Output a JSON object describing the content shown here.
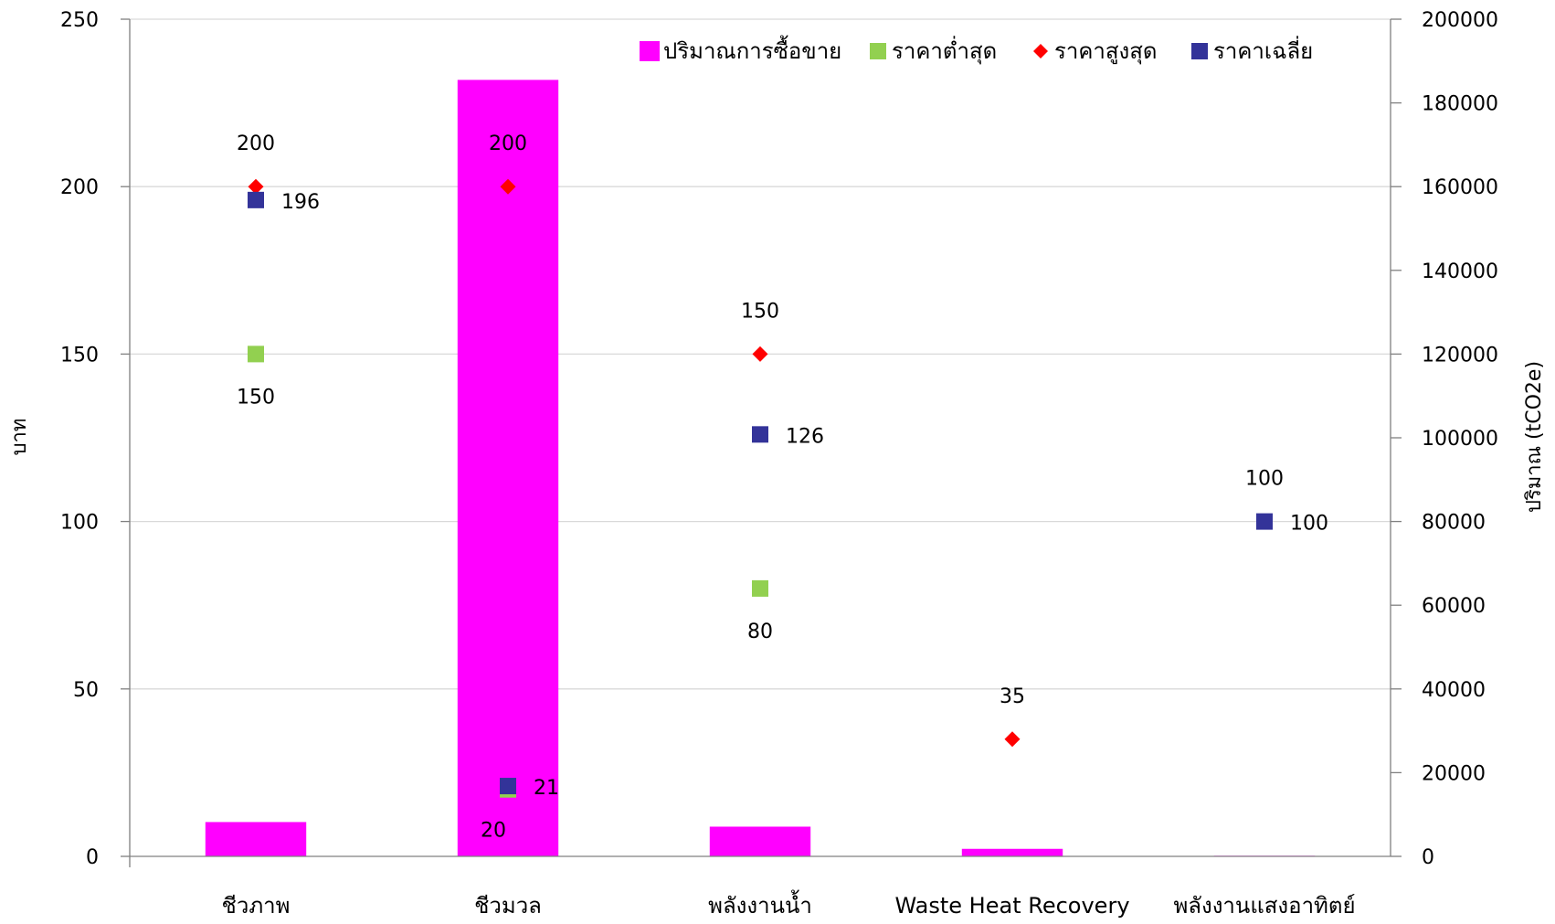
{
  "chart_data": {
    "type": "bar",
    "title": "",
    "categories": [
      "ชีวภาพ",
      "ชีวมวล",
      "พลังงานน้ำ",
      "Waste Heat Recovery",
      "พลังงานแสงอาทิตย์"
    ],
    "ylabel_left": "บาท",
    "ylabel_right": "ปริมาณ (tCO2e)",
    "ylim_left": [
      0,
      250
    ],
    "yticks_left": [
      0,
      50,
      100,
      150,
      200,
      250
    ],
    "ylim_right": [
      0,
      200000
    ],
    "yticks_right": [
      0,
      20000,
      40000,
      60000,
      80000,
      100000,
      120000,
      140000,
      160000,
      180000,
      200000
    ],
    "grid": true,
    "legend_position": "top-right",
    "series": [
      {
        "name": "ปริมาณการซื้อขาย",
        "type": "bar",
        "axis": "right",
        "color": "#ff00ff",
        "marker": "square",
        "values": [
          8200,
          185500,
          7100,
          1800,
          150
        ]
      },
      {
        "name": "ราคาต่ำสุด",
        "type": "scatter",
        "axis": "left",
        "color": "#92d050",
        "marker": "square",
        "values": [
          150,
          20,
          80,
          null,
          null
        ]
      },
      {
        "name": "ราคาสูงสุด",
        "type": "scatter",
        "axis": "left",
        "color": "#ff0000",
        "marker": "diamond",
        "values": [
          200,
          200,
          150,
          35,
          null
        ]
      },
      {
        "name": "ราคาเฉลี่ย",
        "type": "scatter",
        "axis": "left",
        "color": "#333399",
        "marker": "square",
        "values": [
          196,
          21,
          126,
          null,
          100
        ]
      }
    ],
    "data_labels": [
      {
        "series": "ราคาสูงสุด",
        "category": 0,
        "text": "200",
        "pos": "above"
      },
      {
        "series": "ราคาเฉลี่ย",
        "category": 0,
        "text": "196",
        "pos": "right"
      },
      {
        "series": "ราคาต่ำสุด",
        "category": 0,
        "text": "150",
        "pos": "below"
      },
      {
        "series": "ราคาสูงสุด",
        "category": 1,
        "text": "200",
        "pos": "above"
      },
      {
        "series": "ราคาเฉลี่ย",
        "category": 1,
        "text": "21",
        "pos": "right"
      },
      {
        "series": "ราคาต่ำสุด",
        "category": 1,
        "text": "20",
        "pos": "below-left"
      },
      {
        "series": "ราคาสูงสุด",
        "category": 2,
        "text": "150",
        "pos": "above"
      },
      {
        "series": "ราคาเฉลี่ย",
        "category": 2,
        "text": "126",
        "pos": "right"
      },
      {
        "series": "ราคาต่ำสุด",
        "category": 2,
        "text": "80",
        "pos": "below"
      },
      {
        "series": "ราคาสูงสุด",
        "category": 3,
        "text": "35",
        "pos": "above"
      },
      {
        "series": "ราคาเฉลี่ย",
        "category": 4,
        "text": "100",
        "pos": "above"
      },
      {
        "series": "ราคาเฉลี่ย",
        "category": 4,
        "text": "100",
        "pos": "right"
      }
    ]
  }
}
